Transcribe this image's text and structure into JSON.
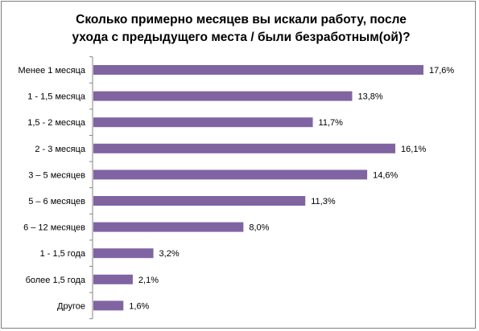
{
  "chart_data": {
    "type": "bar",
    "orientation": "horizontal",
    "title": "Сколько примерно месяцев вы искали работу, после\nухода с предыдущего места / были безработным(ой)?",
    "categories": [
      "Менее 1 месяца",
      "1 - 1,5 месяца",
      "1,5 - 2 месяца",
      "2 - 3 месяца",
      "3 – 5 месяцев",
      "5 – 6 месяцев",
      "6 – 12 месяцев",
      "1 - 1,5 года",
      "более 1,5 года",
      "Другое"
    ],
    "values": [
      17.6,
      13.8,
      11.7,
      16.1,
      14.6,
      11.3,
      8.0,
      3.2,
      2.1,
      1.6
    ],
    "data_labels": [
      "17,6%",
      "13,8%",
      "11,7%",
      "16,1%",
      "14,6%",
      "11,3%",
      "8,0%",
      "3,2%",
      "2,1%",
      "1,6%"
    ],
    "xlim": [
      0,
      17.6
    ],
    "grid": false,
    "legend": "none",
    "bar_color": "#8064A2"
  }
}
